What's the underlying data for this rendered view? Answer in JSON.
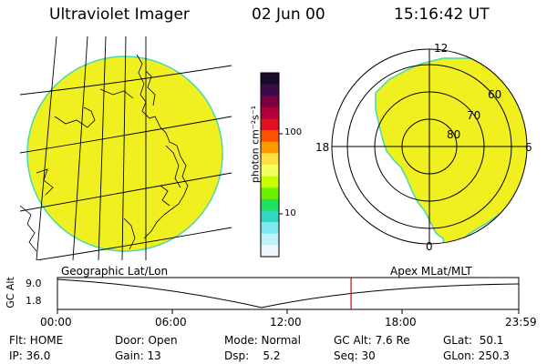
{
  "header": {
    "title": "Ultraviolet Imager",
    "date": "02 Jun 00",
    "time": "15:16:42 UT"
  },
  "colorbar": {
    "unit_label": "photon cm⁻²s⁻¹",
    "tick_labels": [
      "100",
      "10"
    ],
    "colors": [
      "#1a0a2a",
      "#3a0a4a",
      "#7a0044",
      "#b0003a",
      "#e01020",
      "#ff5000",
      "#ff9a00",
      "#ffe040",
      "#f4ff60",
      "#c8ff00",
      "#6cf000",
      "#20e060",
      "#30d8c0",
      "#80e8f0",
      "#c0f0f8",
      "#eef6fa"
    ]
  },
  "polar_plot": {
    "mlt_labels": [
      "12",
      "18",
      "6",
      "0"
    ],
    "lat_labels": [
      "60",
      "70",
      "80"
    ]
  },
  "timeline": {
    "left_label": "Geographic Lat/Lon",
    "right_label": "Apex MLat/MLT",
    "y_axis_label": "GC Alt",
    "y_ticks": [
      "9.0",
      "1.8"
    ],
    "x_ticks": [
      "00:00",
      "06:00",
      "12:00",
      "18:00",
      "23:59"
    ],
    "current_time_marker": "15:16",
    "marker_color": "#e00000"
  },
  "status": {
    "flt": "Flt: HOME",
    "ip": "IP: 36.0",
    "door": "Door: Open",
    "gain": "Gain: 13",
    "mode": "Mode: Normal",
    "dsp": "Dsp:    5.2",
    "gc_alt": "GC Alt: 7.6 Re",
    "seq": "Seq: 30",
    "glat": "GLat:  50.1",
    "glon": "GLon: 250.3"
  },
  "colors": {
    "emission": "#f0f020",
    "emission_edge": "#48d8b0"
  }
}
